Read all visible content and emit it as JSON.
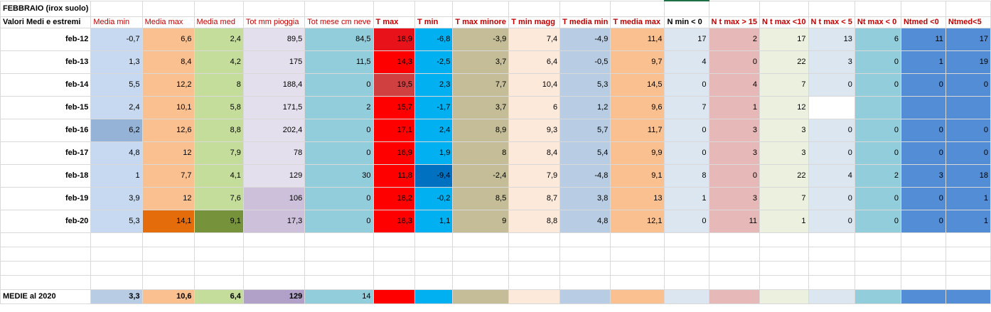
{
  "title": "FEBBRAIO (irox suolo)",
  "row_header": "Valori Medi e estremi",
  "footer_label": "MEDIE al 2020",
  "columns": [
    {
      "label": "Media min",
      "bold": false,
      "red": true
    },
    {
      "label": "Media max",
      "bold": false,
      "red": true
    },
    {
      "label": "Media med",
      "bold": false,
      "red": true
    },
    {
      "label": "Tot mm pioggia",
      "bold": false,
      "red": true
    },
    {
      "label": "Tot mese cm neve",
      "bold": false,
      "red": true
    },
    {
      "label": "T max",
      "bold": true,
      "red": true
    },
    {
      "label": "T min",
      "bold": true,
      "red": true
    },
    {
      "label": "T max minore",
      "bold": true,
      "red": true
    },
    {
      "label": "T min magg",
      "bold": true,
      "red": true
    },
    {
      "label": "T media min",
      "bold": true,
      "red": true
    },
    {
      "label": "T media max",
      "bold": true,
      "red": true
    },
    {
      "label": "N min < 0",
      "bold": true,
      "red": false
    },
    {
      "label": "N t max > 15",
      "bold": true,
      "red": true
    },
    {
      "label": "N t max <10",
      "bold": true,
      "red": true
    },
    {
      "label": "N t max < 5",
      "bold": true,
      "red": true
    },
    {
      "label": "Nt max < 0",
      "bold": true,
      "red": true
    },
    {
      "label": "Ntmed <0",
      "bold": true,
      "red": true
    },
    {
      "label": "Ntmed<5",
      "bold": true,
      "red": true
    }
  ],
  "rows": [
    {
      "label": "feb-12",
      "values": [
        "-0,7",
        "6,6",
        "2,4",
        "89,5",
        "84,5",
        "18,9",
        "-6,8",
        "-3,9",
        "7,4",
        "-4,9",
        "11,4",
        "17",
        "2",
        "17",
        "13",
        "6",
        "11",
        "17"
      ],
      "colors": [
        "#c6d9f1",
        "#fac090",
        "#c4dd9a",
        "#e4dfec",
        "#92cddc",
        "#e8121a",
        "#00b0f0",
        "#c4bd97",
        "#fde9d9",
        "#b8cce4",
        "#fac090",
        "#dce6f1",
        "#e6b8b7",
        "#ebf1de",
        "#dce6f1",
        "#92cddc",
        "#538dd5",
        "#538dd5"
      ]
    },
    {
      "label": "feb-13",
      "values": [
        "1,3",
        "8,4",
        "4,2",
        "175",
        "11,5",
        "14,3",
        "-2,5",
        "3,7",
        "6,4",
        "-0,5",
        "9,7",
        "4",
        "0",
        "22",
        "3",
        "0",
        "1",
        "19"
      ],
      "colors": [
        "#c6d9f1",
        "#fac090",
        "#c4dd9a",
        "#e4dfec",
        "#92cddc",
        "#ff0000",
        "#00b0f0",
        "#c4bd97",
        "#fde9d9",
        "#b8cce4",
        "#fac090",
        "#dce6f1",
        "#e6b8b7",
        "#ebf1de",
        "#dce6f1",
        "#92cddc",
        "#538dd5",
        "#538dd5"
      ]
    },
    {
      "label": "feb-14",
      "values": [
        "5,5",
        "12,2",
        "8",
        "188,4",
        "0",
        "19,5",
        "2,3",
        "7,7",
        "10,4",
        "5,3",
        "14,5",
        "0",
        "4",
        "7",
        "0",
        "0",
        "0",
        "0"
      ],
      "colors": [
        "#c6d9f1",
        "#fac090",
        "#c4dd9a",
        "#e4dfec",
        "#92cddc",
        "#d04040",
        "#00b0f0",
        "#c4bd97",
        "#fde9d9",
        "#b8cce4",
        "#fac090",
        "#dce6f1",
        "#e6b8b7",
        "#ebf1de",
        "#dce6f1",
        "#92cddc",
        "#538dd5",
        "#538dd5"
      ]
    },
    {
      "label": "feb-15",
      "values": [
        "2,4",
        "10,1",
        "5,8",
        "171,5",
        "2",
        "15,7",
        "-1,7",
        "3,7",
        "6",
        "1,2",
        "9,6",
        "7",
        "1",
        "12",
        "",
        "",
        "",
        ""
      ],
      "colors": [
        "#c6d9f1",
        "#fac090",
        "#c4dd9a",
        "#e4dfec",
        "#92cddc",
        "#ff0000",
        "#00b0f0",
        "#c4bd97",
        "#fde9d9",
        "#b8cce4",
        "#fac090",
        "#dce6f1",
        "#e6b8b7",
        "#ebf1de",
        "#ffffff",
        "#92cddc",
        "#538dd5",
        "#538dd5"
      ]
    },
    {
      "label": "feb-16",
      "values": [
        "6,2",
        "12,6",
        "8,8",
        "202,4",
        "0",
        "17,1",
        "2,4",
        "8,9",
        "9,3",
        "5,7",
        "11,7",
        "0",
        "3",
        "3",
        "0",
        "0",
        "0",
        "0"
      ],
      "colors": [
        "#95b3d7",
        "#fac090",
        "#c4dd9a",
        "#e4dfec",
        "#92cddc",
        "#ff0000",
        "#00b0f0",
        "#c4bd97",
        "#fde9d9",
        "#b8cce4",
        "#fac090",
        "#dce6f1",
        "#e6b8b7",
        "#ebf1de",
        "#dce6f1",
        "#92cddc",
        "#538dd5",
        "#538dd5"
      ]
    },
    {
      "label": "feb-17",
      "values": [
        "4,8",
        "12",
        "7,9",
        "78",
        "0",
        "16,9",
        "1,9",
        "8",
        "8,4",
        "5,4",
        "9,9",
        "0",
        "3",
        "3",
        "0",
        "0",
        "0",
        "0"
      ],
      "colors": [
        "#c6d9f1",
        "#fac090",
        "#c4dd9a",
        "#e4dfec",
        "#92cddc",
        "#ff0000",
        "#00b0f0",
        "#c4bd97",
        "#fde9d9",
        "#b8cce4",
        "#fac090",
        "#dce6f1",
        "#e6b8b7",
        "#ebf1de",
        "#dce6f1",
        "#92cddc",
        "#538dd5",
        "#538dd5"
      ]
    },
    {
      "label": "feb-18",
      "values": [
        "1",
        "7,7",
        "4,1",
        "129",
        "30",
        "11,8",
        "-9,4",
        "-2,4",
        "7,9",
        "-4,8",
        "9,1",
        "8",
        "0",
        "22",
        "4",
        "2",
        "3",
        "18"
      ],
      "colors": [
        "#c6d9f1",
        "#fac090",
        "#c4dd9a",
        "#e4dfec",
        "#92cddc",
        "#ff0000",
        "#0070c0",
        "#c4bd97",
        "#fde9d9",
        "#b8cce4",
        "#fac090",
        "#dce6f1",
        "#e6b8b7",
        "#ebf1de",
        "#dce6f1",
        "#92cddc",
        "#538dd5",
        "#538dd5"
      ]
    },
    {
      "label": "feb-19",
      "values": [
        "3,9",
        "12",
        "7,6",
        "106",
        "0",
        "18,2",
        "-0,2",
        "8,5",
        "8,7",
        "3,8",
        "13",
        "1",
        "3",
        "7",
        "0",
        "0",
        "0",
        "1"
      ],
      "colors": [
        "#c6d9f1",
        "#fac090",
        "#c4dd9a",
        "#ccc0da",
        "#92cddc",
        "#ff0000",
        "#00b0f0",
        "#c4bd97",
        "#fde9d9",
        "#b8cce4",
        "#fac090",
        "#dce6f1",
        "#e6b8b7",
        "#ebf1de",
        "#dce6f1",
        "#92cddc",
        "#538dd5",
        "#538dd5"
      ]
    },
    {
      "label": "feb-20",
      "values": [
        "5,3",
        "14,1",
        "9,1",
        "17,3",
        "0",
        "18,3",
        "1,1",
        "9",
        "8,8",
        "4,8",
        "12,1",
        "0",
        "11",
        "1",
        "0",
        "0",
        "0",
        "1"
      ],
      "colors": [
        "#c6d9f1",
        "#e46c0a",
        "#76933c",
        "#ccc0da",
        "#92cddc",
        "#ff0000",
        "#00b0f0",
        "#c4bd97",
        "#fde9d9",
        "#b8cce4",
        "#fac090",
        "#dce6f1",
        "#e6b8b7",
        "#ebf1de",
        "#dce6f1",
        "#92cddc",
        "#538dd5",
        "#538dd5"
      ]
    }
  ],
  "footer_values": [
    "3,3",
    "10,6",
    "6,4",
    "129",
    "14",
    "",
    "",
    "",
    "",
    "",
    "",
    "",
    "",
    "",
    "",
    "",
    "",
    ""
  ],
  "footer_colors": [
    "#b8cce4",
    "#fac090",
    "#c4dd9a",
    "#b1a0c7",
    "#92cddc",
    "#ff0000",
    "#00b0f0",
    "#c4bd97",
    "#fde9d9",
    "#b8cce4",
    "#fac090",
    "#dce6f1",
    "#e6b8b7",
    "#ebf1de",
    "#dce6f1",
    "#92cddc",
    "#538dd5",
    "#538dd5"
  ],
  "footer_big_cols": [
    0,
    1,
    2,
    3
  ]
}
